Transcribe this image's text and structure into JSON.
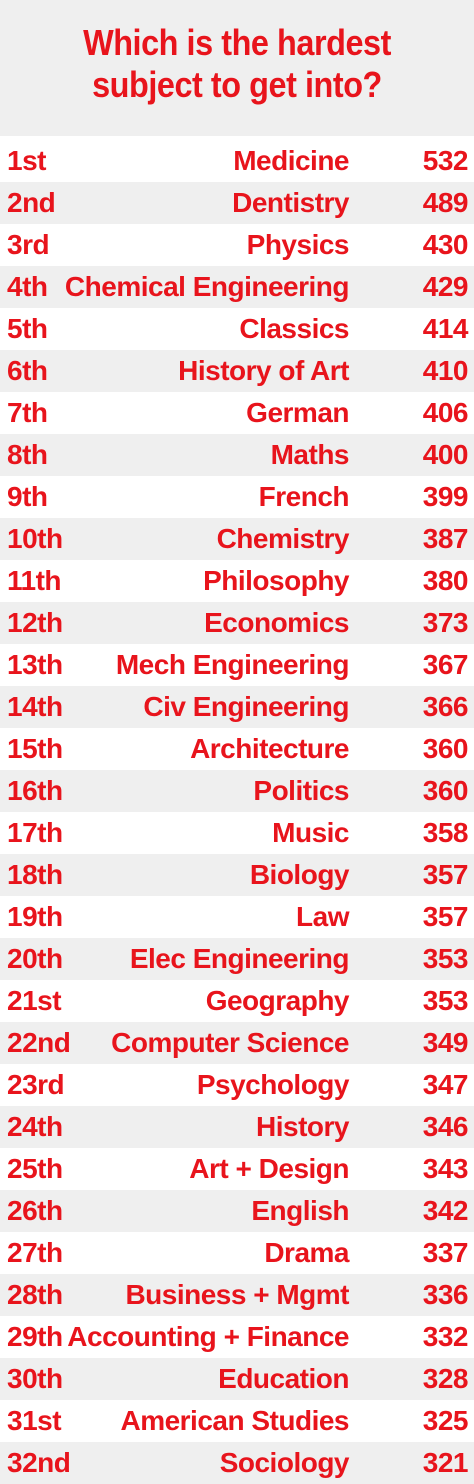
{
  "colors": {
    "text": "#e8141c",
    "stripe": "#efefef",
    "background": "#ffffff"
  },
  "chart_data": {
    "type": "table",
    "title_lines": [
      "Which is the hardest",
      "subject to get into?"
    ],
    "rows": [
      {
        "rank": "1st",
        "subject": "Medicine",
        "score": 532
      },
      {
        "rank": "2nd",
        "subject": "Dentistry",
        "score": 489
      },
      {
        "rank": "3rd",
        "subject": "Physics",
        "score": 430
      },
      {
        "rank": "4th",
        "subject": "Chemical Engineering",
        "score": 429
      },
      {
        "rank": "5th",
        "subject": "Classics",
        "score": 414
      },
      {
        "rank": "6th",
        "subject": "History of Art",
        "score": 410
      },
      {
        "rank": "7th",
        "subject": "German",
        "score": 406
      },
      {
        "rank": "8th",
        "subject": "Maths",
        "score": 400
      },
      {
        "rank": "9th",
        "subject": "French",
        "score": 399
      },
      {
        "rank": "10th",
        "subject": "Chemistry",
        "score": 387
      },
      {
        "rank": "11th",
        "subject": "Philosophy",
        "score": 380
      },
      {
        "rank": "12th",
        "subject": "Economics",
        "score": 373
      },
      {
        "rank": "13th",
        "subject": "Mech Engineering",
        "score": 367
      },
      {
        "rank": "14th",
        "subject": "Civ Engineering",
        "score": 366
      },
      {
        "rank": "15th",
        "subject": "Architecture",
        "score": 360
      },
      {
        "rank": "16th",
        "subject": "Politics",
        "score": 360
      },
      {
        "rank": "17th",
        "subject": "Music",
        "score": 358
      },
      {
        "rank": "18th",
        "subject": "Biology",
        "score": 357
      },
      {
        "rank": "19th",
        "subject": "Law",
        "score": 357
      },
      {
        "rank": "20th",
        "subject": "Elec Engineering",
        "score": 353
      },
      {
        "rank": "21st",
        "subject": "Geography",
        "score": 353
      },
      {
        "rank": "22nd",
        "subject": "Computer Science",
        "score": 349
      },
      {
        "rank": "23rd",
        "subject": "Psychology",
        "score": 347
      },
      {
        "rank": "24th",
        "subject": "History",
        "score": 346
      },
      {
        "rank": "25th",
        "subject": "Art + Design",
        "score": 343
      },
      {
        "rank": "26th",
        "subject": "English",
        "score": 342
      },
      {
        "rank": "27th",
        "subject": "Drama",
        "score": 337
      },
      {
        "rank": "28th",
        "subject": "Business + Mgmt",
        "score": 336
      },
      {
        "rank": "29th",
        "subject": "Accounting + Finance",
        "score": 332
      },
      {
        "rank": "30th",
        "subject": "Education",
        "score": 328
      },
      {
        "rank": "31st",
        "subject": "American Studies",
        "score": 325
      },
      {
        "rank": "32nd",
        "subject": "Sociology",
        "score": 321
      }
    ]
  }
}
